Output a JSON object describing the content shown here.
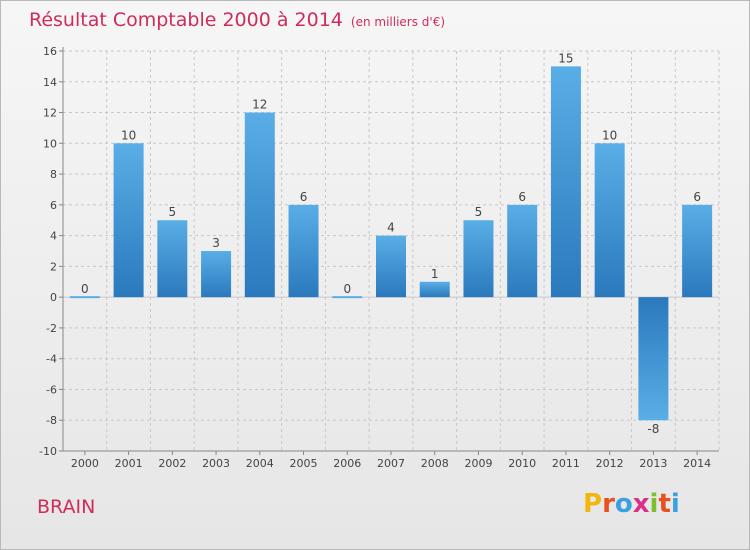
{
  "header": {
    "title": "Résultat Comptable 2000 à 2014",
    "unit": "(en milliers d'€)"
  },
  "footer": {
    "town": "BRAIN",
    "logo_letters": [
      "P",
      "r",
      "o",
      "x",
      "i",
      "t",
      "i"
    ],
    "logo_colors": [
      "#f2b70f",
      "#e6521f",
      "#3aa1e0",
      "#d9308a",
      "#7cbf2f",
      "#e6521f",
      "#3aa1e0"
    ]
  },
  "colors": {
    "bar_light": "#5aaee6",
    "bar_dark": "#2a79bd",
    "title": "#d02c5a",
    "grid": "#c8c8c8",
    "axis": "#888888"
  },
  "chart_data": {
    "type": "bar",
    "title": "Résultat Comptable 2000 à 2014",
    "ylabel": "en milliers d'€",
    "xlabel": "",
    "categories": [
      "2000",
      "2001",
      "2002",
      "2003",
      "2004",
      "2005",
      "2006",
      "2007",
      "2008",
      "2009",
      "2010",
      "2011",
      "2012",
      "2013",
      "2014"
    ],
    "values": [
      0,
      10,
      5,
      3,
      12,
      6,
      0,
      4,
      1,
      5,
      6,
      15,
      10,
      -8,
      6
    ],
    "ylim": [
      -10,
      16
    ],
    "yticks": [
      16,
      14,
      12,
      10,
      8,
      6,
      4,
      2,
      0,
      -2,
      -4,
      -6,
      -8,
      -10
    ],
    "grid": true
  }
}
